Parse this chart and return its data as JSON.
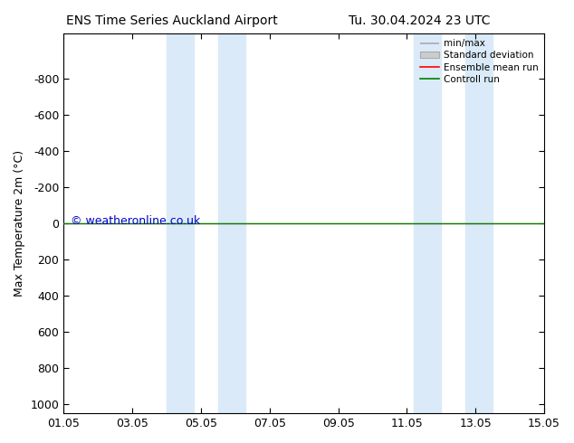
{
  "title_left": "ENS Time Series Auckland Airport",
  "title_right": "Tu. 30.04.2024 23 UTC",
  "ylabel": "Max Temperature 2m (°C)",
  "copyright": "© weatheronline.co.uk",
  "ylim_top": -1050,
  "ylim_bottom": 1050,
  "yticks": [
    -800,
    -600,
    -400,
    -200,
    0,
    200,
    400,
    600,
    800,
    1000
  ],
  "xtick_labels": [
    "01.05",
    "03.05",
    "05.05",
    "07.05",
    "09.05",
    "11.05",
    "13.05",
    "15.05"
  ],
  "xtick_positions": [
    0,
    2,
    4,
    6,
    8,
    10,
    12,
    14
  ],
  "x_range": [
    0,
    14
  ],
  "shade_bands": [
    [
      3.0,
      3.8
    ],
    [
      4.5,
      5.3
    ],
    [
      10.2,
      11.0
    ],
    [
      11.7,
      12.5
    ]
  ],
  "shade_color": "#daeaf8",
  "green_line_y": 0,
  "red_line_y": 0,
  "background_color": "#ffffff",
  "title_fontsize": 10,
  "axis_fontsize": 9,
  "tick_fontsize": 9,
  "copyright_color": "#0000cc",
  "copyright_fontsize": 9
}
